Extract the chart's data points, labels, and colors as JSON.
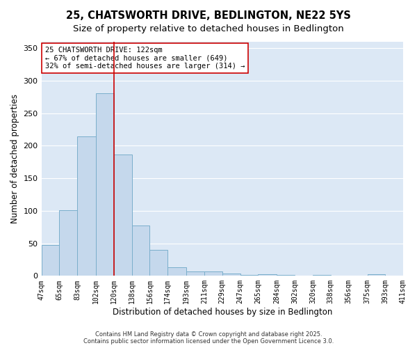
{
  "title": "25, CHATSWORTH DRIVE, BEDLINGTON, NE22 5YS",
  "subtitle": "Size of property relative to detached houses in Bedlington",
  "xlabel": "Distribution of detached houses by size in Bedlington",
  "ylabel": "Number of detached properties",
  "bin_edges": [
    47,
    65,
    83,
    102,
    120,
    138,
    156,
    174,
    193,
    211,
    229,
    247,
    265,
    284,
    302,
    320,
    338,
    356,
    375,
    393,
    411
  ],
  "bar_heights": [
    47,
    101,
    214,
    281,
    187,
    77,
    40,
    13,
    7,
    7,
    4,
    1,
    2,
    1,
    0,
    1,
    0,
    0,
    2,
    0
  ],
  "bar_color": "#c5d8ec",
  "bar_edge_color": "#7aaecb",
  "bar_linewidth": 0.7,
  "vline_x": 120,
  "vline_color": "#cc0000",
  "vline_linewidth": 1.2,
  "annotation_text": "25 CHATSWORTH DRIVE: 122sqm\n← 67% of detached houses are smaller (649)\n32% of semi-detached houses are larger (314) →",
  "annotation_box_color": "#ffffff",
  "annotation_box_edge": "#cc0000",
  "annotation_fontsize": 7.5,
  "ylim": [
    0,
    360
  ],
  "yticks": [
    0,
    50,
    100,
    150,
    200,
    250,
    300,
    350
  ],
  "fig_background": "#ffffff",
  "plot_background": "#dce8f5",
  "grid_color": "#ffffff",
  "title_fontsize": 10.5,
  "subtitle_fontsize": 9.5,
  "xlabel_fontsize": 8.5,
  "ylabel_fontsize": 8.5,
  "xtick_fontsize": 7,
  "ytick_fontsize": 8,
  "footer_text": "Contains HM Land Registry data © Crown copyright and database right 2025.\nContains public sector information licensed under the Open Government Licence 3.0.",
  "footer_fontsize": 6.0
}
